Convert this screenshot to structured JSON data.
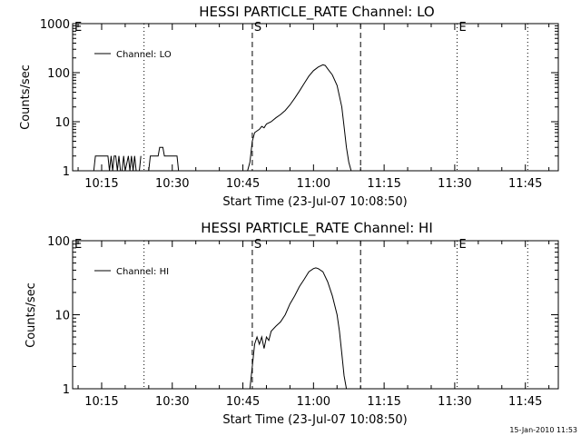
{
  "footer_timestamp": "15-Jan-2010 11:53",
  "chart_data": [
    {
      "type": "line",
      "title": "HESSI PARTICLE_RATE Channel: LO",
      "xlabel": "Start Time (23-Jul-07 10:08:50)",
      "ylabel": "Counts/sec",
      "yscale": "log",
      "ylim": [
        1,
        1000
      ],
      "xlim": [
        "10:08:50",
        "11:52:00"
      ],
      "x_ticks": [
        "10:15",
        "10:30",
        "10:45",
        "11:00",
        "11:15",
        "11:30",
        "11:45"
      ],
      "y_ticks": [
        "1",
        "10",
        "100",
        "1000"
      ],
      "legend": {
        "position": "top-left",
        "entries": [
          "Channel: LO"
        ]
      },
      "markers": [
        {
          "label": "E",
          "time": "10:08:50",
          "style": "dotted"
        },
        {
          "label": "",
          "time": "10:24:00",
          "style": "dotted"
        },
        {
          "label": "S",
          "time": "10:47:00",
          "style": "dashed"
        },
        {
          "label": "",
          "time": "11:10:00",
          "style": "dashed"
        },
        {
          "label": "E",
          "time": "11:30:30",
          "style": "dotted"
        },
        {
          "label": "",
          "time": "11:45:30",
          "style": "dotted"
        }
      ],
      "series": [
        {
          "name": "Channel: LO",
          "segments": [
            {
              "x": [
                "10:13:20",
                "10:13:40",
                "10:14:00",
                "10:16:20",
                "10:16:40",
                "10:17:00",
                "10:17:20",
                "10:17:40",
                "10:18:00",
                "10:18:20",
                "10:18:40",
                "10:19:00",
                "10:19:20",
                "10:19:40",
                "10:20:00",
                "10:20:40",
                "10:21:00",
                "10:21:20",
                "10:21:40",
                "10:22:00",
                "10:22:20",
                "10:23:00",
                "10:23:20"
              ],
              "y": [
                1,
                2,
                2,
                2,
                1,
                2,
                1,
                2,
                2,
                1,
                2,
                1,
                1,
                2,
                1,
                2,
                1,
                2,
                1,
                2,
                1,
                1,
                2
              ]
            },
            {
              "x": [
                "10:25:00",
                "10:25:20",
                "10:26:00",
                "10:27:00",
                "10:27:20",
                "10:28:00",
                "10:28:20",
                "10:28:40",
                "10:29:20",
                "10:29:40",
                "10:31:00",
                "10:31:20"
              ],
              "y": [
                1,
                2,
                2,
                2,
                3,
                3,
                2,
                2,
                2,
                2,
                2,
                1
              ]
            },
            {
              "x": [
                "10:46:00",
                "10:46:30",
                "10:47:00",
                "10:47:30",
                "10:48:00",
                "10:48:30",
                "10:49:00",
                "10:49:30",
                "10:50:00",
                "10:51:00",
                "10:52:00",
                "10:53:00",
                "10:54:00",
                "10:55:00",
                "10:56:00",
                "10:57:00",
                "10:58:00",
                "10:59:00",
                "11:00:00",
                "11:01:00",
                "11:02:00",
                "11:02:30",
                "11:03:00",
                "11:04:00",
                "11:05:00",
                "11:06:00",
                "11:06:30",
                "11:07:00",
                "11:07:30",
                "11:08:00"
              ],
              "y": [
                1,
                1.5,
                4,
                6,
                6.5,
                7,
                8,
                7.5,
                9,
                10,
                12,
                14,
                17,
                22,
                30,
                42,
                60,
                85,
                110,
                130,
                145,
                140,
                120,
                90,
                55,
                20,
                8,
                3,
                1.5,
                1
              ]
            }
          ]
        }
      ]
    },
    {
      "type": "line",
      "title": "HESSI PARTICLE_RATE Channel: HI",
      "xlabel": "Start Time (23-Jul-07 10:08:50)",
      "ylabel": "Counts/sec",
      "yscale": "log",
      "ylim": [
        1,
        100
      ],
      "xlim": [
        "10:08:50",
        "11:52:00"
      ],
      "x_ticks": [
        "10:15",
        "10:30",
        "10:45",
        "11:00",
        "11:15",
        "11:30",
        "11:45"
      ],
      "y_ticks": [
        "1",
        "10",
        "100"
      ],
      "legend": {
        "position": "top-left",
        "entries": [
          "Channel: HI"
        ]
      },
      "markers": [
        {
          "label": "E",
          "time": "10:08:50",
          "style": "dotted"
        },
        {
          "label": "",
          "time": "10:24:00",
          "style": "dotted"
        },
        {
          "label": "S",
          "time": "10:47:00",
          "style": "dashed"
        },
        {
          "label": "",
          "time": "11:10:00",
          "style": "dashed"
        },
        {
          "label": "E",
          "time": "11:30:30",
          "style": "dotted"
        },
        {
          "label": "",
          "time": "11:45:30",
          "style": "dotted"
        }
      ],
      "series": [
        {
          "name": "Channel: HI",
          "segments": [
            {
              "x": [
                "10:46:30",
                "10:47:00",
                "10:47:30",
                "10:48:00",
                "10:48:30",
                "10:49:00",
                "10:49:30",
                "10:50:00",
                "10:50:30",
                "10:51:00",
                "10:52:00",
                "10:53:00",
                "10:54:00",
                "10:55:00",
                "10:56:00",
                "10:57:00",
                "10:58:00",
                "10:59:00",
                "11:00:00",
                "11:00:30",
                "11:01:00",
                "11:02:00",
                "11:03:00",
                "11:04:00",
                "11:05:00",
                "11:05:30",
                "11:06:00",
                "11:06:30",
                "11:07:00"
              ],
              "y": [
                1,
                2,
                4,
                5,
                4,
                5,
                3.5,
                5,
                4.5,
                6,
                7,
                8,
                10,
                14,
                18,
                24,
                30,
                38,
                42,
                43,
                42,
                38,
                28,
                18,
                10,
                6,
                3,
                1.5,
                1
              ]
            }
          ]
        }
      ]
    }
  ]
}
